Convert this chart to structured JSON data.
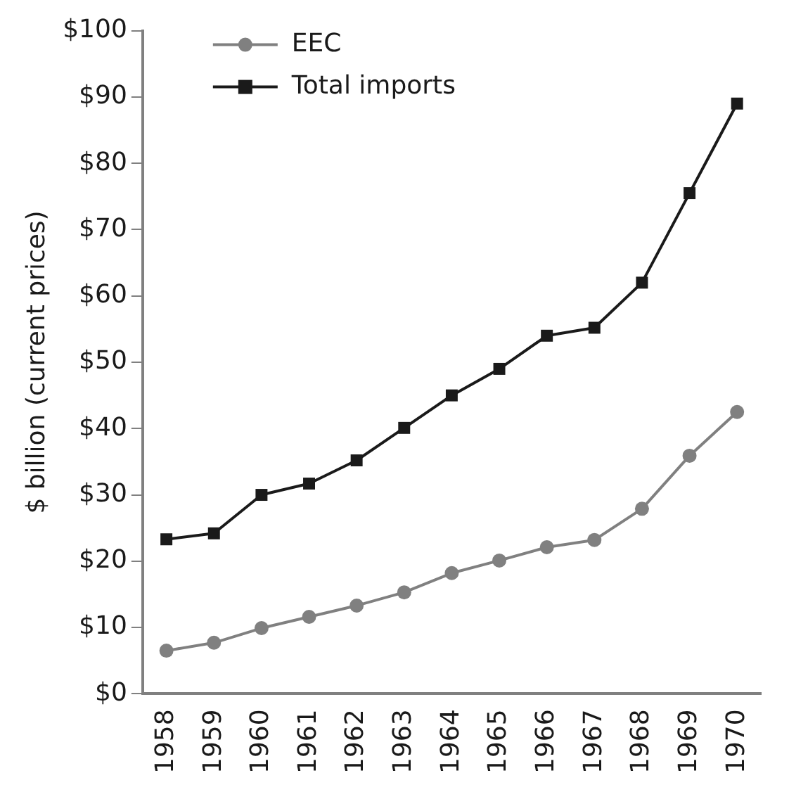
{
  "chart_data": {
    "type": "line",
    "ylabel": "$ billion (current prices)",
    "categories": [
      "1958",
      "1959",
      "1960",
      "1961",
      "1962",
      "1963",
      "1964",
      "1965",
      "1966",
      "1967",
      "1968",
      "1969",
      "1970"
    ],
    "series": [
      {
        "name": "EEC",
        "color": "#808080",
        "marker": "circle",
        "values": [
          6.5,
          7.7,
          9.9,
          11.6,
          13.3,
          15.3,
          18.2,
          20.1,
          22.1,
          23.2,
          27.9,
          35.9,
          42.5
        ]
      },
      {
        "name": "Total imports",
        "color": "#1a1a1a",
        "marker": "square",
        "values": [
          23.3,
          24.2,
          30,
          31.7,
          35.2,
          40.1,
          45,
          49,
          54,
          55.2,
          62,
          75.5,
          89
        ]
      }
    ],
    "ylim": [
      0,
      100
    ],
    "yticks": [
      {
        "value": 0,
        "label": "$0"
      },
      {
        "value": 10,
        "label": "$10"
      },
      {
        "value": 20,
        "label": "$20"
      },
      {
        "value": 30,
        "label": "$30"
      },
      {
        "value": 40,
        "label": "$40"
      },
      {
        "value": 50,
        "label": "$50"
      },
      {
        "value": 60,
        "label": "$60"
      },
      {
        "value": 70,
        "label": "$70"
      },
      {
        "value": 80,
        "label": "$80"
      },
      {
        "value": 90,
        "label": "$90"
      },
      {
        "value": 100,
        "label": "$100"
      }
    ],
    "grid": false,
    "legend": "top left"
  }
}
